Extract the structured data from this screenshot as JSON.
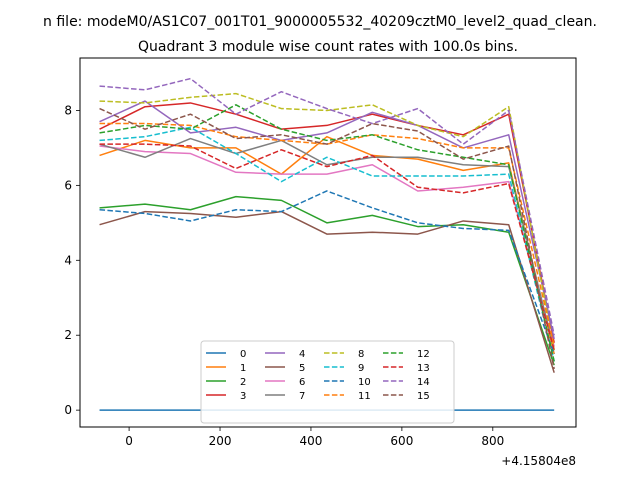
{
  "chart_data": {
    "type": "line",
    "suptitle": "n file: modeM0/AS1C07_001T01_9000005532_40209cztM0_level2_quad_clean.",
    "title": "Quadrant 3 module wise count rates with 100.0s bins.",
    "xlabel": "",
    "ylabel": "",
    "x_offset_label": "+4.15804e8",
    "xlim": [
      -108,
      983
    ],
    "ylim": [
      -0.45,
      9.4
    ],
    "xticks": [
      0,
      200,
      400,
      600,
      800
    ],
    "yticks": [
      0,
      2,
      4,
      6,
      8
    ],
    "grid": false,
    "legend": {
      "placement": "lower-center",
      "columns": 4
    },
    "x": [
      -65,
      35,
      135,
      235,
      335,
      435,
      535,
      635,
      735,
      835,
      935
    ],
    "series": [
      {
        "name": "0",
        "color": "#1f77b4",
        "dash": "solid",
        "values": [
          0,
          0,
          0,
          0,
          0,
          0,
          0,
          0,
          0,
          0,
          0
        ]
      },
      {
        "name": "1",
        "color": "#ff7f0e",
        "dash": "solid",
        "values": [
          6.8,
          7.2,
          7.0,
          7.0,
          6.3,
          7.3,
          6.8,
          6.7,
          6.4,
          6.6,
          1.5
        ]
      },
      {
        "name": "2",
        "color": "#2ca02c",
        "dash": "solid",
        "values": [
          5.4,
          5.5,
          5.35,
          5.7,
          5.6,
          5.0,
          5.2,
          4.9,
          4.95,
          4.75,
          1.2
        ]
      },
      {
        "name": "3",
        "color": "#d62728",
        "dash": "solid",
        "values": [
          7.5,
          8.1,
          8.2,
          7.9,
          7.5,
          7.6,
          7.9,
          7.6,
          7.35,
          7.9,
          1.8
        ]
      },
      {
        "name": "4",
        "color": "#9467bd",
        "dash": "solid",
        "values": [
          7.7,
          8.25,
          7.4,
          7.55,
          7.2,
          7.4,
          7.95,
          7.6,
          7.0,
          7.35,
          1.9
        ]
      },
      {
        "name": "5",
        "color": "#8c564b",
        "dash": "solid",
        "values": [
          4.95,
          5.3,
          5.25,
          5.15,
          5.3,
          4.7,
          4.75,
          4.7,
          5.05,
          4.95,
          1.0
        ]
      },
      {
        "name": "6",
        "color": "#e377c2",
        "dash": "solid",
        "values": [
          7.05,
          6.9,
          6.85,
          6.35,
          6.3,
          6.3,
          6.55,
          5.85,
          5.95,
          6.1,
          1.7
        ]
      },
      {
        "name": "7",
        "color": "#7f7f7f",
        "dash": "solid",
        "values": [
          7.1,
          6.75,
          7.25,
          6.85,
          7.2,
          6.55,
          6.75,
          6.75,
          6.55,
          6.5,
          1.6
        ]
      },
      {
        "name": "8",
        "color": "#bcbd22",
        "dash": "dashed",
        "values": [
          8.25,
          8.2,
          8.35,
          8.45,
          8.05,
          8.0,
          8.15,
          7.6,
          7.3,
          8.1,
          1.6
        ]
      },
      {
        "name": "9",
        "color": "#17becf",
        "dash": "dashed",
        "values": [
          7.2,
          7.3,
          7.55,
          6.85,
          6.1,
          6.75,
          6.25,
          6.25,
          6.25,
          6.3,
          1.3
        ]
      },
      {
        "name": "10",
        "color": "#1f77b4",
        "dash": "dashed",
        "values": [
          5.35,
          5.25,
          5.05,
          5.35,
          5.3,
          5.85,
          5.4,
          5.0,
          4.85,
          4.8,
          1.5
        ]
      },
      {
        "name": "11",
        "color": "#ff7f0e",
        "dash": "dashed",
        "values": [
          7.65,
          7.65,
          7.6,
          7.3,
          7.2,
          7.1,
          7.35,
          7.25,
          7.0,
          7.0,
          1.7
        ]
      },
      {
        "name": "12",
        "color": "#2ca02c",
        "dash": "dashed",
        "values": [
          7.4,
          7.6,
          7.5,
          8.15,
          7.5,
          7.2,
          7.35,
          6.95,
          6.75,
          6.55,
          1.3
        ]
      },
      {
        "name": "13",
        "color": "#d62728",
        "dash": "dashed",
        "values": [
          7.1,
          7.1,
          7.05,
          6.45,
          6.95,
          6.5,
          6.8,
          5.95,
          5.8,
          6.05,
          1.6
        ]
      },
      {
        "name": "14",
        "color": "#9467bd",
        "dash": "dashed",
        "values": [
          8.65,
          8.55,
          8.85,
          7.9,
          8.5,
          8.05,
          7.65,
          8.05,
          7.1,
          8.0,
          2.0
        ]
      },
      {
        "name": "15",
        "color": "#8c564b",
        "dash": "dashed",
        "values": [
          8.05,
          7.5,
          7.9,
          7.25,
          7.35,
          7.1,
          7.65,
          7.45,
          6.7,
          7.05,
          1.1
        ]
      }
    ]
  }
}
